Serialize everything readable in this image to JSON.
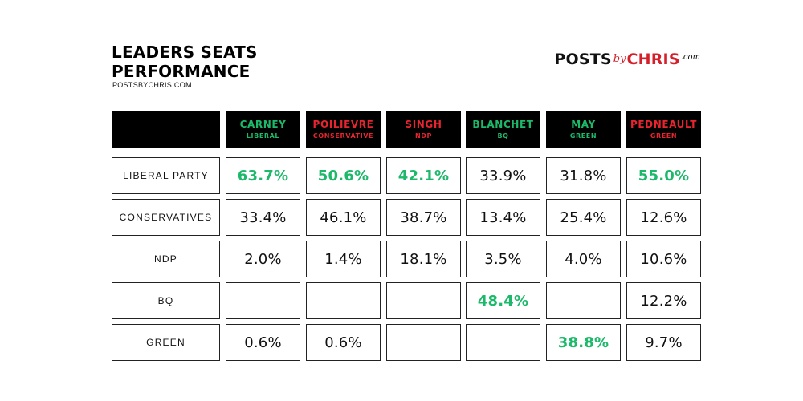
{
  "header": {
    "title_lines": [
      "LEADERS SEATS",
      "PERFORMANCE"
    ],
    "source": "POSTSBYCHRIS.COM"
  },
  "logo": {
    "part1": "POSTS",
    "part2": "by",
    "part3": "CHRIS",
    "part4": ".com"
  },
  "colors": {
    "green": "#1db96a",
    "red": "#e8242f",
    "black": "#000000",
    "text": "#111111",
    "logo_red": "#d5202b"
  },
  "chart_data": {
    "type": "table",
    "columns": [
      {
        "leader": "CARNEY",
        "party": "LIBERAL",
        "color": "green"
      },
      {
        "leader": "POILIEVRE",
        "party": "CONSERVATIVE",
        "color": "red"
      },
      {
        "leader": "SINGH",
        "party": "NDP",
        "color": "red"
      },
      {
        "leader": "BLANCHET",
        "party": "BQ",
        "color": "green"
      },
      {
        "leader": "MAY",
        "party": "GREEN",
        "color": "green"
      },
      {
        "leader": "PEDNEAULT",
        "party": "GREEN",
        "color": "red"
      }
    ],
    "rows": [
      {
        "label": "LIBERAL PARTY",
        "values": [
          "63.7%",
          "50.6%",
          "42.1%",
          "33.9%",
          "31.8%",
          "55.0%"
        ],
        "highlight": [
          true,
          true,
          true,
          false,
          false,
          true
        ]
      },
      {
        "label": "CONSERVATIVES",
        "values": [
          "33.4%",
          "46.1%",
          "38.7%",
          "13.4%",
          "25.4%",
          "12.6%"
        ],
        "highlight": [
          false,
          false,
          false,
          false,
          false,
          false
        ]
      },
      {
        "label": "NDP",
        "values": [
          "2.0%",
          "1.4%",
          "18.1%",
          "3.5%",
          "4.0%",
          "10.6%"
        ],
        "highlight": [
          false,
          false,
          false,
          false,
          false,
          false
        ]
      },
      {
        "label": "BQ",
        "values": [
          "",
          "",
          "",
          "48.4%",
          "",
          "12.2%"
        ],
        "highlight": [
          false,
          false,
          false,
          true,
          false,
          false
        ]
      },
      {
        "label": "GREEN",
        "values": [
          "0.6%",
          "0.6%",
          "",
          "",
          "38.8%",
          "9.7%"
        ],
        "highlight": [
          false,
          false,
          false,
          false,
          true,
          false
        ]
      }
    ]
  }
}
